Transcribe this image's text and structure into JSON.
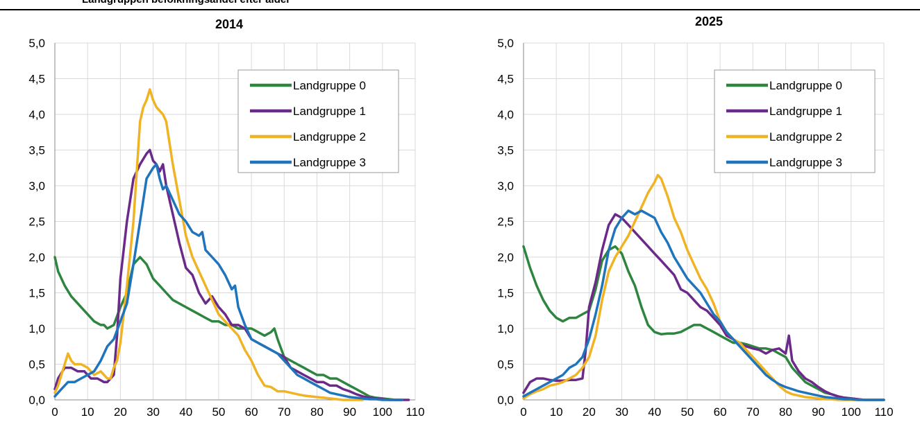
{
  "header": {
    "title": "Landgruppen befolkningsandel efter alder"
  },
  "colors": {
    "lg0": "#2e8540",
    "lg1": "#6b2a8a",
    "lg2": "#f0b323",
    "lg3": "#1f74bb",
    "grid": "#d9d9d9",
    "axis": "#888888"
  },
  "chart_data": [
    {
      "type": "line",
      "title": "2014",
      "xlabel": "",
      "ylabel": "",
      "xlim": [
        0,
        110
      ],
      "ylim": [
        0,
        5
      ],
      "xticks": [
        "0",
        "10",
        "20",
        "30",
        "40",
        "50",
        "60",
        "70",
        "80",
        "90",
        "100",
        "110"
      ],
      "yticks": [
        "0,0",
        "0,5",
        "1,0",
        "1,5",
        "2,0",
        "2,5",
        "3,0",
        "3,5",
        "4,0",
        "4,5",
        "5,0"
      ],
      "grid": true,
      "legend": "top-right",
      "series": [
        {
          "name": "Landgruppe 0",
          "color": "#2e8540",
          "x": [
            0,
            1,
            3,
            5,
            8,
            10,
            12,
            14,
            15,
            16,
            18,
            20,
            22,
            24,
            26,
            28,
            30,
            32,
            34,
            36,
            38,
            40,
            42,
            44,
            46,
            48,
            50,
            52,
            54,
            56,
            58,
            60,
            62,
            64,
            66,
            67,
            68,
            70,
            72,
            74,
            76,
            78,
            80,
            82,
            84,
            86,
            88,
            90,
            92,
            94,
            96,
            98,
            100,
            102,
            104,
            106
          ],
          "y": [
            2.0,
            1.8,
            1.6,
            1.45,
            1.3,
            1.2,
            1.1,
            1.05,
            1.05,
            1.0,
            1.05,
            1.3,
            1.5,
            1.9,
            2.0,
            1.9,
            1.7,
            1.6,
            1.5,
            1.4,
            1.35,
            1.3,
            1.25,
            1.2,
            1.15,
            1.1,
            1.1,
            1.05,
            1.05,
            1.0,
            1.0,
            1.0,
            0.95,
            0.9,
            0.95,
            1.0,
            0.85,
            0.6,
            0.55,
            0.5,
            0.45,
            0.4,
            0.35,
            0.35,
            0.3,
            0.3,
            0.25,
            0.2,
            0.15,
            0.1,
            0.05,
            0.03,
            0.02,
            0.01,
            0.0,
            0.0
          ]
        },
        {
          "name": "Landgruppe 1",
          "color": "#6b2a8a",
          "x": [
            0,
            1,
            3,
            5,
            7,
            9,
            11,
            13,
            15,
            16,
            18,
            19,
            20,
            22,
            24,
            26,
            28,
            29,
            30,
            31,
            32,
            33,
            34,
            36,
            38,
            40,
            42,
            44,
            46,
            48,
            50,
            52,
            54,
            56,
            58,
            60,
            62,
            64,
            66,
            68,
            70,
            72,
            74,
            76,
            78,
            80,
            82,
            84,
            86,
            88,
            90,
            92,
            94,
            96,
            98,
            100,
            102,
            104,
            106,
            108
          ],
          "y": [
            0.15,
            0.3,
            0.45,
            0.45,
            0.4,
            0.4,
            0.3,
            0.3,
            0.25,
            0.25,
            0.35,
            0.9,
            1.7,
            2.5,
            3.1,
            3.3,
            3.45,
            3.5,
            3.35,
            3.3,
            3.2,
            3.3,
            3.0,
            2.6,
            2.2,
            1.85,
            1.75,
            1.5,
            1.35,
            1.45,
            1.3,
            1.2,
            1.05,
            1.05,
            1.0,
            0.85,
            0.8,
            0.75,
            0.7,
            0.65,
            0.6,
            0.45,
            0.4,
            0.35,
            0.3,
            0.25,
            0.25,
            0.2,
            0.2,
            0.15,
            0.12,
            0.08,
            0.05,
            0.03,
            0.02,
            0.01,
            0.0,
            0.0,
            0.0,
            0.0
          ]
        },
        {
          "name": "Landgruppe 2",
          "color": "#f0b323",
          "x": [
            0,
            1,
            2,
            3,
            4,
            5,
            6,
            8,
            10,
            12,
            14,
            16,
            17,
            18,
            19,
            20,
            22,
            24,
            26,
            27,
            28,
            29,
            30,
            31,
            32,
            33,
            34,
            35,
            36,
            38,
            40,
            42,
            44,
            46,
            48,
            50,
            52,
            54,
            56,
            58,
            60,
            62,
            64,
            66,
            68,
            70,
            72,
            74,
            76,
            78,
            80,
            82,
            84,
            86,
            88,
            90,
            92,
            94
          ],
          "y": [
            0.1,
            0.2,
            0.35,
            0.5,
            0.65,
            0.55,
            0.5,
            0.5,
            0.45,
            0.35,
            0.4,
            0.3,
            0.3,
            0.45,
            0.55,
            0.8,
            1.6,
            2.5,
            3.9,
            4.1,
            4.2,
            4.35,
            4.2,
            4.1,
            4.05,
            4.0,
            3.9,
            3.6,
            3.3,
            2.8,
            2.3,
            2.0,
            1.8,
            1.6,
            1.4,
            1.2,
            1.1,
            1.0,
            0.9,
            0.7,
            0.55,
            0.35,
            0.2,
            0.18,
            0.12,
            0.12,
            0.1,
            0.08,
            0.06,
            0.05,
            0.04,
            0.03,
            0.02,
            0.01,
            0.0,
            0.0,
            0.0,
            0.0
          ]
        },
        {
          "name": "Landgruppe 3",
          "color": "#1f74bb",
          "x": [
            0,
            2,
            4,
            6,
            8,
            10,
            12,
            14,
            16,
            18,
            20,
            22,
            24,
            26,
            28,
            30,
            31,
            32,
            33,
            34,
            36,
            38,
            40,
            42,
            44,
            45,
            46,
            48,
            50,
            52,
            54,
            55,
            56,
            58,
            60,
            62,
            64,
            66,
            68,
            70,
            72,
            74,
            76,
            78,
            80,
            82,
            84,
            86,
            88,
            90,
            92,
            94,
            96,
            98,
            100,
            102,
            104,
            106
          ],
          "y": [
            0.05,
            0.15,
            0.25,
            0.25,
            0.3,
            0.35,
            0.4,
            0.55,
            0.75,
            0.85,
            1.1,
            1.35,
            1.9,
            2.5,
            3.1,
            3.25,
            3.3,
            3.1,
            2.95,
            3.0,
            2.8,
            2.6,
            2.5,
            2.35,
            2.3,
            2.35,
            2.1,
            2.0,
            1.9,
            1.75,
            1.55,
            1.6,
            1.3,
            1.05,
            0.85,
            0.8,
            0.75,
            0.7,
            0.65,
            0.55,
            0.45,
            0.35,
            0.3,
            0.25,
            0.2,
            0.15,
            0.1,
            0.08,
            0.06,
            0.04,
            0.03,
            0.02,
            0.01,
            0.01,
            0.0,
            0.0,
            0.0,
            0.0
          ]
        }
      ]
    },
    {
      "type": "line",
      "title": "2025",
      "xlabel": "",
      "ylabel": "",
      "xlim": [
        0,
        110
      ],
      "ylim": [
        0,
        5
      ],
      "xticks": [
        "0",
        "10",
        "20",
        "30",
        "40",
        "50",
        "60",
        "70",
        "80",
        "90",
        "100",
        "110"
      ],
      "yticks": [
        "0,0",
        "0,5",
        "1,0",
        "1,5",
        "2,0",
        "2,5",
        "3,0",
        "3,5",
        "4,0",
        "4,5",
        "5,0"
      ],
      "grid": true,
      "legend": "top-right",
      "series": [
        {
          "name": "Landgruppe 0",
          "color": "#2e8540",
          "x": [
            0,
            2,
            4,
            6,
            8,
            10,
            12,
            14,
            16,
            18,
            20,
            22,
            24,
            26,
            28,
            30,
            32,
            34,
            36,
            38,
            40,
            42,
            44,
            46,
            48,
            50,
            52,
            54,
            56,
            58,
            60,
            62,
            64,
            66,
            68,
            70,
            72,
            74,
            76,
            78,
            80,
            82,
            84,
            86,
            88,
            90,
            92,
            94,
            96,
            98,
            100,
            102,
            104,
            106,
            108,
            110
          ],
          "y": [
            2.15,
            1.85,
            1.6,
            1.4,
            1.25,
            1.15,
            1.1,
            1.15,
            1.15,
            1.2,
            1.25,
            1.55,
            1.95,
            2.1,
            2.15,
            2.05,
            1.8,
            1.6,
            1.3,
            1.05,
            0.95,
            0.92,
            0.93,
            0.93,
            0.95,
            1.0,
            1.05,
            1.05,
            1.0,
            0.95,
            0.9,
            0.85,
            0.8,
            0.8,
            0.78,
            0.75,
            0.72,
            0.72,
            0.7,
            0.65,
            0.6,
            0.45,
            0.35,
            0.25,
            0.2,
            0.15,
            0.1,
            0.08,
            0.05,
            0.03,
            0.02,
            0.01,
            0.0,
            0.0,
            0.0,
            0.0
          ]
        },
        {
          "name": "Landgruppe 1",
          "color": "#6b2a8a",
          "x": [
            0,
            2,
            4,
            6,
            8,
            10,
            12,
            14,
            16,
            18,
            19,
            20,
            22,
            24,
            26,
            28,
            30,
            32,
            34,
            36,
            38,
            40,
            42,
            44,
            46,
            48,
            50,
            52,
            54,
            56,
            58,
            60,
            62,
            64,
            66,
            68,
            70,
            72,
            74,
            76,
            78,
            80,
            81,
            82,
            84,
            86,
            88,
            90,
            92,
            94,
            96,
            98,
            100,
            102,
            104,
            106,
            108,
            110
          ],
          "y": [
            0.1,
            0.25,
            0.3,
            0.3,
            0.28,
            0.27,
            0.27,
            0.28,
            0.28,
            0.3,
            0.7,
            1.3,
            1.65,
            2.1,
            2.45,
            2.6,
            2.55,
            2.45,
            2.35,
            2.25,
            2.15,
            2.05,
            1.95,
            1.85,
            1.75,
            1.55,
            1.5,
            1.4,
            1.3,
            1.25,
            1.15,
            1.05,
            0.9,
            0.85,
            0.78,
            0.75,
            0.72,
            0.7,
            0.65,
            0.7,
            0.72,
            0.65,
            0.9,
            0.55,
            0.4,
            0.3,
            0.25,
            0.18,
            0.12,
            0.08,
            0.05,
            0.03,
            0.02,
            0.01,
            0.0,
            0.0,
            0.0,
            0.0
          ]
        },
        {
          "name": "Landgruppe 2",
          "color": "#f0b323",
          "x": [
            0,
            2,
            4,
            6,
            8,
            10,
            12,
            14,
            16,
            18,
            20,
            22,
            24,
            26,
            28,
            30,
            32,
            34,
            36,
            38,
            40,
            41,
            42,
            44,
            46,
            48,
            50,
            52,
            54,
            56,
            57,
            58,
            60,
            62,
            64,
            66,
            68,
            70,
            72,
            74,
            76,
            78,
            80,
            82,
            84,
            86,
            88,
            90,
            92,
            94,
            96,
            98,
            100,
            102,
            104,
            106,
            108,
            110
          ],
          "y": [
            0.02,
            0.08,
            0.12,
            0.15,
            0.2,
            0.22,
            0.25,
            0.3,
            0.35,
            0.45,
            0.6,
            0.9,
            1.4,
            1.8,
            2.0,
            2.15,
            2.3,
            2.5,
            2.7,
            2.9,
            3.05,
            3.15,
            3.1,
            2.85,
            2.55,
            2.35,
            2.1,
            1.9,
            1.7,
            1.55,
            1.45,
            1.35,
            1.1,
            0.95,
            0.85,
            0.8,
            0.7,
            0.6,
            0.5,
            0.4,
            0.3,
            0.2,
            0.12,
            0.08,
            0.06,
            0.04,
            0.03,
            0.02,
            0.01,
            0.01,
            0.0,
            0.0,
            0.0,
            0.0,
            0.0,
            0.0,
            0.0,
            0.0
          ]
        },
        {
          "name": "Landgruppe 3",
          "color": "#1f74bb",
          "x": [
            0,
            2,
            4,
            6,
            8,
            10,
            12,
            14,
            16,
            18,
            20,
            22,
            24,
            26,
            28,
            30,
            32,
            34,
            36,
            38,
            40,
            42,
            44,
            46,
            48,
            50,
            52,
            54,
            56,
            58,
            60,
            62,
            64,
            66,
            68,
            70,
            72,
            74,
            76,
            78,
            80,
            82,
            84,
            86,
            88,
            90,
            92,
            94,
            96,
            98,
            100,
            102,
            104,
            106,
            108,
            110
          ],
          "y": [
            0.05,
            0.1,
            0.15,
            0.2,
            0.25,
            0.3,
            0.35,
            0.45,
            0.5,
            0.6,
            0.85,
            1.2,
            1.6,
            2.1,
            2.4,
            2.55,
            2.65,
            2.6,
            2.65,
            2.6,
            2.55,
            2.35,
            2.2,
            2.0,
            1.85,
            1.7,
            1.6,
            1.5,
            1.35,
            1.2,
            1.1,
            0.95,
            0.85,
            0.75,
            0.65,
            0.55,
            0.45,
            0.35,
            0.28,
            0.22,
            0.18,
            0.15,
            0.12,
            0.1,
            0.08,
            0.06,
            0.04,
            0.03,
            0.02,
            0.01,
            0.01,
            0.0,
            0.0,
            0.0,
            0.0,
            0.0
          ]
        }
      ]
    }
  ]
}
